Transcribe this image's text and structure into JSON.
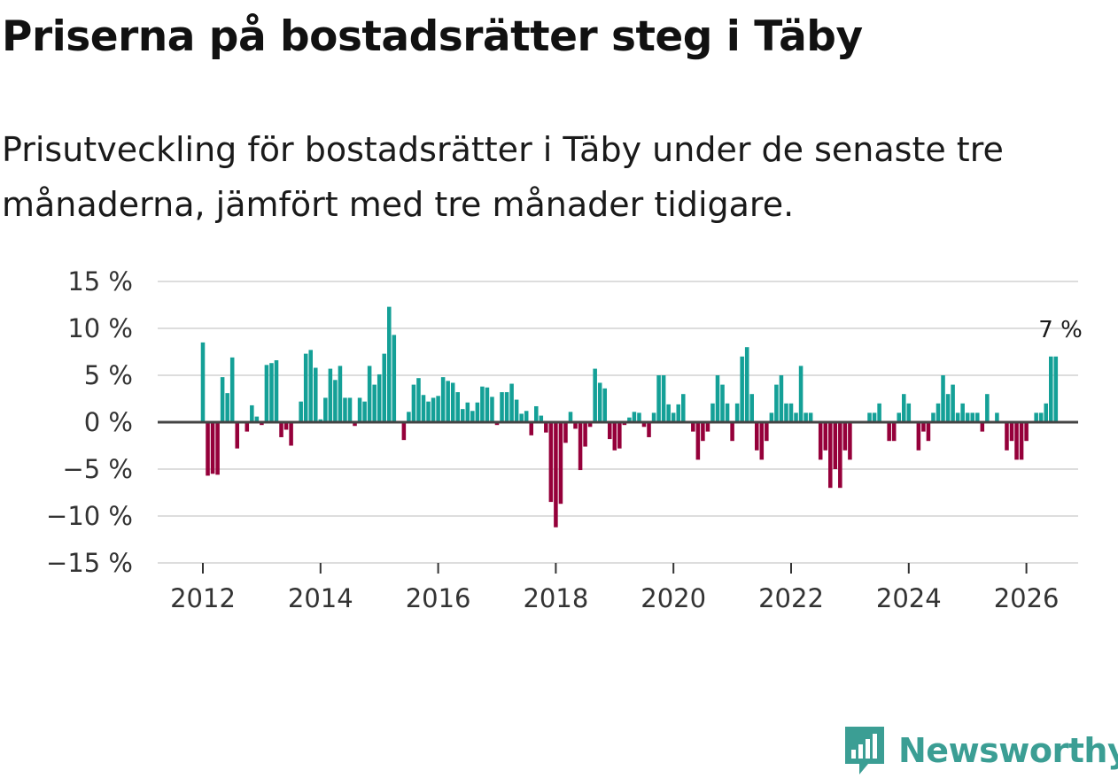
{
  "title": "Priserna på bostadsrätter steg i Täby",
  "subtitle": "Prisutveckling för bostadsrätter i Täby under de senaste tre månaderna, jämfört med tre månader tidigare.",
  "logo": {
    "text": "Newsworthy",
    "icon": "newsworthy-logo-icon"
  },
  "colors": {
    "positive": "#14a097",
    "negative": "#95003a",
    "grid": "#dddddd",
    "zero": "#444444",
    "logo": "#3b9e94"
  },
  "chart_data": {
    "type": "bar",
    "title": "",
    "xlabel": "",
    "ylabel": "",
    "ylim": [
      -15,
      15
    ],
    "yticks": [
      15,
      10,
      5,
      0,
      -5,
      -10,
      -15
    ],
    "ytick_labels": [
      "15 %",
      "10 %",
      "5 %",
      "0 %",
      "−5 %",
      "−10 %",
      "−15 %"
    ],
    "xticks": [
      2012,
      2014,
      2016,
      2018,
      2020,
      2022,
      2024,
      2026
    ],
    "xtick_labels": [
      "2012",
      "2014",
      "2016",
      "2018",
      "2020",
      "2022",
      "2024",
      "2026"
    ],
    "start": {
      "year": 2012,
      "month": 1
    },
    "series": [
      {
        "name": "Prisutveckling",
        "values": [
          8.5,
          -5.7,
          -5.5,
          -5.6,
          4.8,
          3.1,
          6.9,
          -2.8,
          0,
          -1,
          1.8,
          0.6,
          -0.3,
          6.1,
          6.3,
          6.6,
          -1.6,
          -0.8,
          -2.5,
          0,
          2.2,
          7.3,
          7.7,
          5.8,
          0.3,
          2.6,
          5.7,
          4.5,
          6,
          2.6,
          2.6,
          -0.4,
          2.6,
          2.2,
          6,
          4,
          5.1,
          7.3,
          12.3,
          9.3,
          0,
          -1.9,
          1.1,
          4,
          4.7,
          2.9,
          2.2,
          2.6,
          2.8,
          4.8,
          4.4,
          4.2,
          3.2,
          1.4,
          2.1,
          1.2,
          2.1,
          3.8,
          3.7,
          2.7,
          -0.3,
          3.2,
          3.2,
          4.1,
          2.4,
          0.9,
          1.2,
          -1.4,
          1.7,
          0.7,
          -1.1,
          -8.5,
          -11.2,
          -8.7,
          -2.2,
          1.1,
          -0.7,
          -5.1,
          -2.6,
          -0.5,
          5.7,
          4.2,
          3.6,
          -1.8,
          -3,
          -2.8,
          -0.3,
          0.5,
          1.1,
          1,
          -0.5,
          -1.6,
          1,
          5,
          5,
          1.9,
          1,
          1.9,
          3,
          0,
          -1,
          -4,
          -2,
          -1,
          2,
          5,
          4,
          2,
          -2,
          2,
          7,
          8,
          3,
          -3,
          -4,
          -2,
          1,
          4,
          5,
          2,
          2,
          1,
          6,
          1,
          1,
          0,
          -4,
          -3,
          -7,
          -5,
          -7,
          -3,
          -4,
          0,
          0,
          0,
          1,
          1,
          2,
          0,
          -2,
          -2,
          1,
          3,
          2,
          0,
          -3,
          -1,
          -2,
          1,
          2,
          5,
          3,
          4,
          1,
          2,
          1,
          1,
          1,
          -1,
          3,
          0,
          1,
          0,
          -3,
          -2,
          -4,
          -4,
          -2,
          0,
          1,
          1,
          2,
          7,
          7
        ],
        "annotation": "7 %"
      }
    ]
  }
}
